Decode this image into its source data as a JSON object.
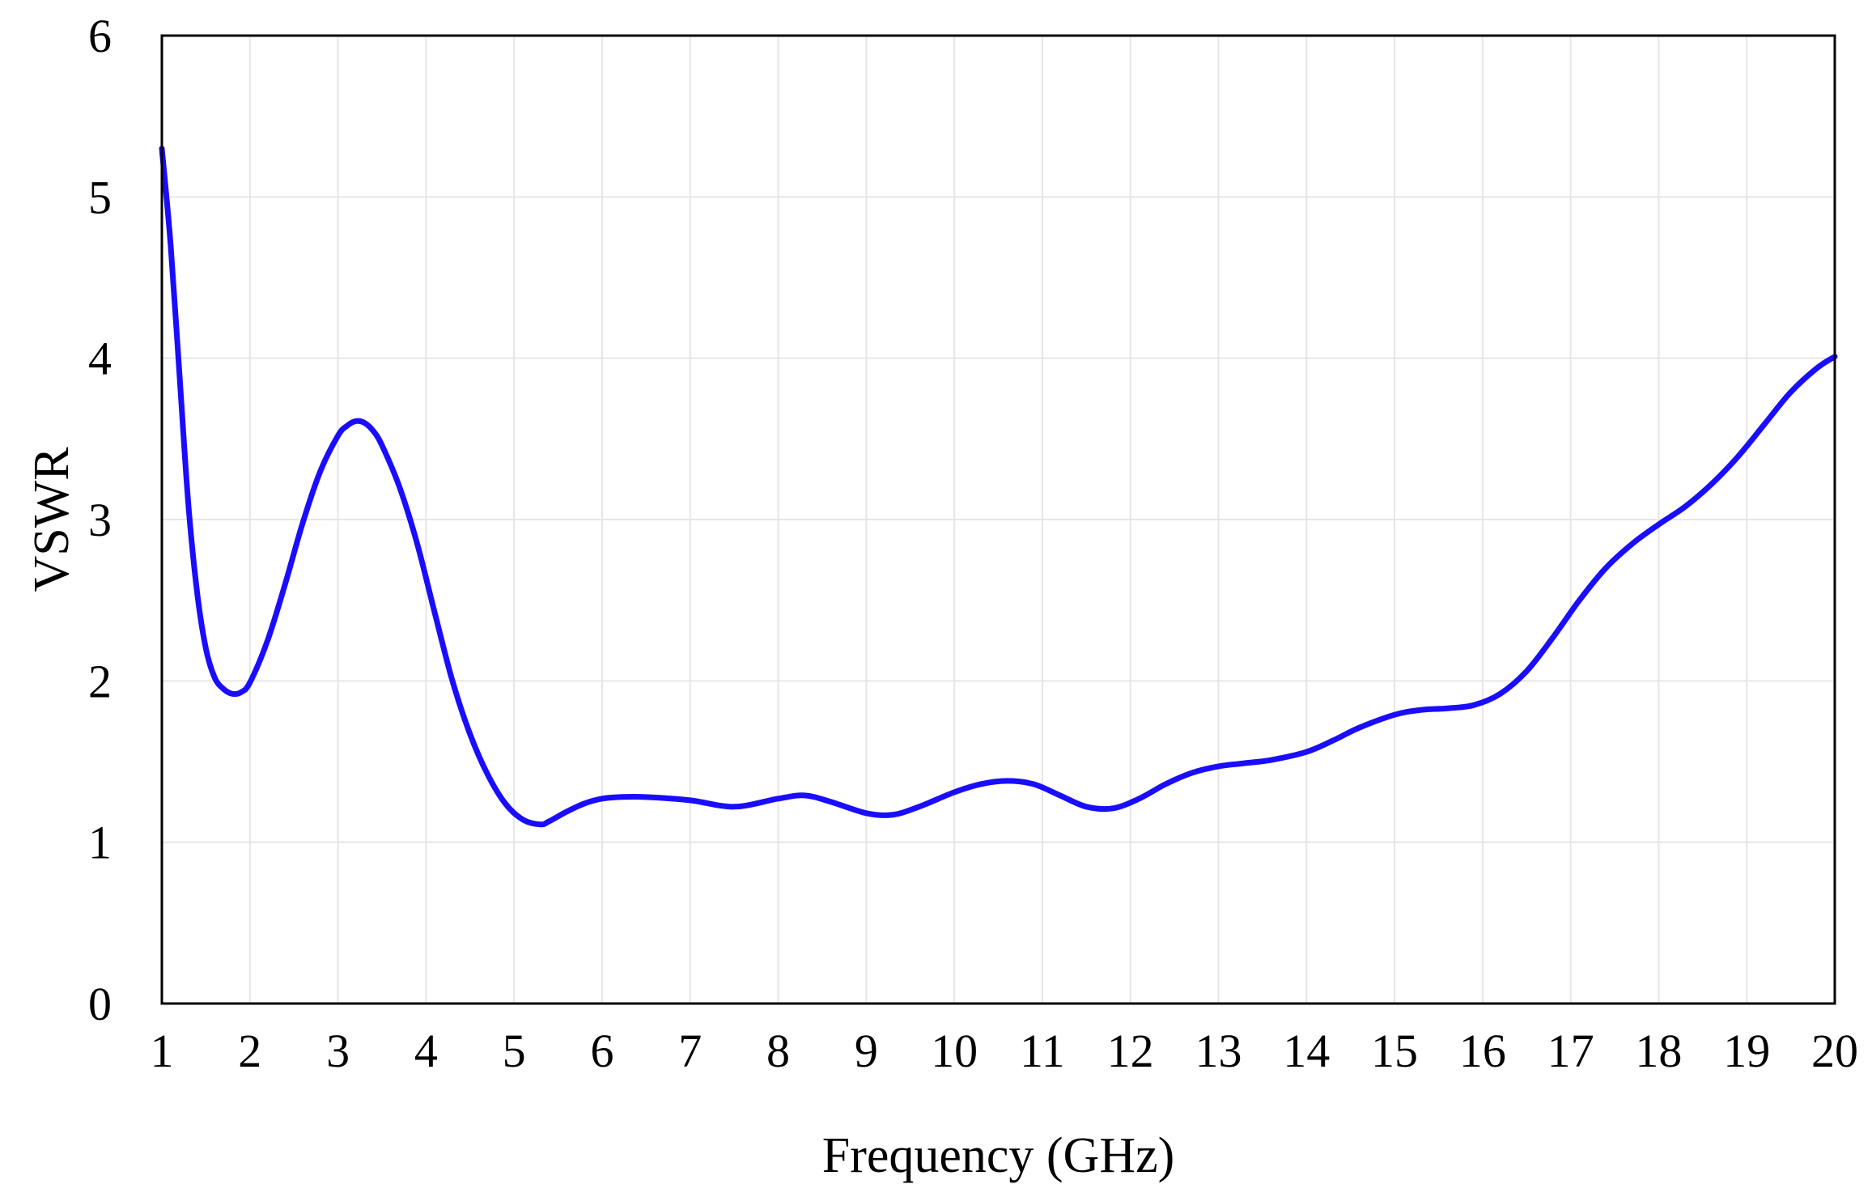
{
  "chart_data": {
    "type": "line",
    "xlabel": "Frequency (GHz)",
    "ylabel": "VSWR",
    "xlim": [
      1,
      20
    ],
    "ylim": [
      0,
      6
    ],
    "x_ticks": [
      "1",
      "2",
      "3",
      "4",
      "5",
      "6",
      "7",
      "8",
      "9",
      "10",
      "11",
      "12",
      "13",
      "14",
      "15",
      "16",
      "17",
      "18",
      "19",
      "20"
    ],
    "y_ticks": [
      "0",
      "1",
      "2",
      "3",
      "4",
      "5",
      "6"
    ],
    "grid": true,
    "legend": "none",
    "colors": {
      "series": "#1a0dff",
      "grid": "#e6e6e6",
      "axis": "#000000"
    },
    "series": [
      {
        "x": [
          1.0,
          1.1,
          1.2,
          1.3,
          1.4,
          1.5,
          1.6,
          1.7,
          1.8,
          1.9,
          2.0,
          2.2,
          2.4,
          2.6,
          2.8,
          3.0,
          3.1,
          3.2,
          3.3,
          3.4,
          3.5,
          3.7,
          3.9,
          4.1,
          4.3,
          4.5,
          4.7,
          4.9,
          5.1,
          5.3,
          5.4,
          5.6,
          5.8,
          6.0,
          6.2,
          6.5,
          7.0,
          7.5,
          8.0,
          8.3,
          8.6,
          9.0,
          9.3,
          9.6,
          10.0,
          10.3,
          10.6,
          10.9,
          11.2,
          11.5,
          11.8,
          12.1,
          12.4,
          12.7,
          13.0,
          13.3,
          13.6,
          14.0,
          14.3,
          14.6,
          15.0,
          15.3,
          15.6,
          15.9,
          16.2,
          16.5,
          16.8,
          17.1,
          17.4,
          17.7,
          18.0,
          18.3,
          18.6,
          18.9,
          19.2,
          19.5,
          19.8,
          20.0
        ],
        "y": [
          5.3,
          4.7,
          3.9,
          3.1,
          2.55,
          2.2,
          2.02,
          1.95,
          1.92,
          1.93,
          1.99,
          2.25,
          2.6,
          2.98,
          3.3,
          3.52,
          3.58,
          3.61,
          3.6,
          3.55,
          3.46,
          3.2,
          2.85,
          2.42,
          2.0,
          1.67,
          1.42,
          1.24,
          1.14,
          1.11,
          1.13,
          1.19,
          1.24,
          1.27,
          1.28,
          1.28,
          1.26,
          1.22,
          1.27,
          1.29,
          1.25,
          1.18,
          1.17,
          1.22,
          1.31,
          1.36,
          1.38,
          1.36,
          1.29,
          1.22,
          1.21,
          1.27,
          1.36,
          1.43,
          1.47,
          1.49,
          1.51,
          1.56,
          1.63,
          1.71,
          1.79,
          1.82,
          1.83,
          1.85,
          1.92,
          2.06,
          2.27,
          2.5,
          2.7,
          2.85,
          2.97,
          3.08,
          3.22,
          3.39,
          3.59,
          3.79,
          3.94,
          4.01
        ]
      }
    ]
  }
}
